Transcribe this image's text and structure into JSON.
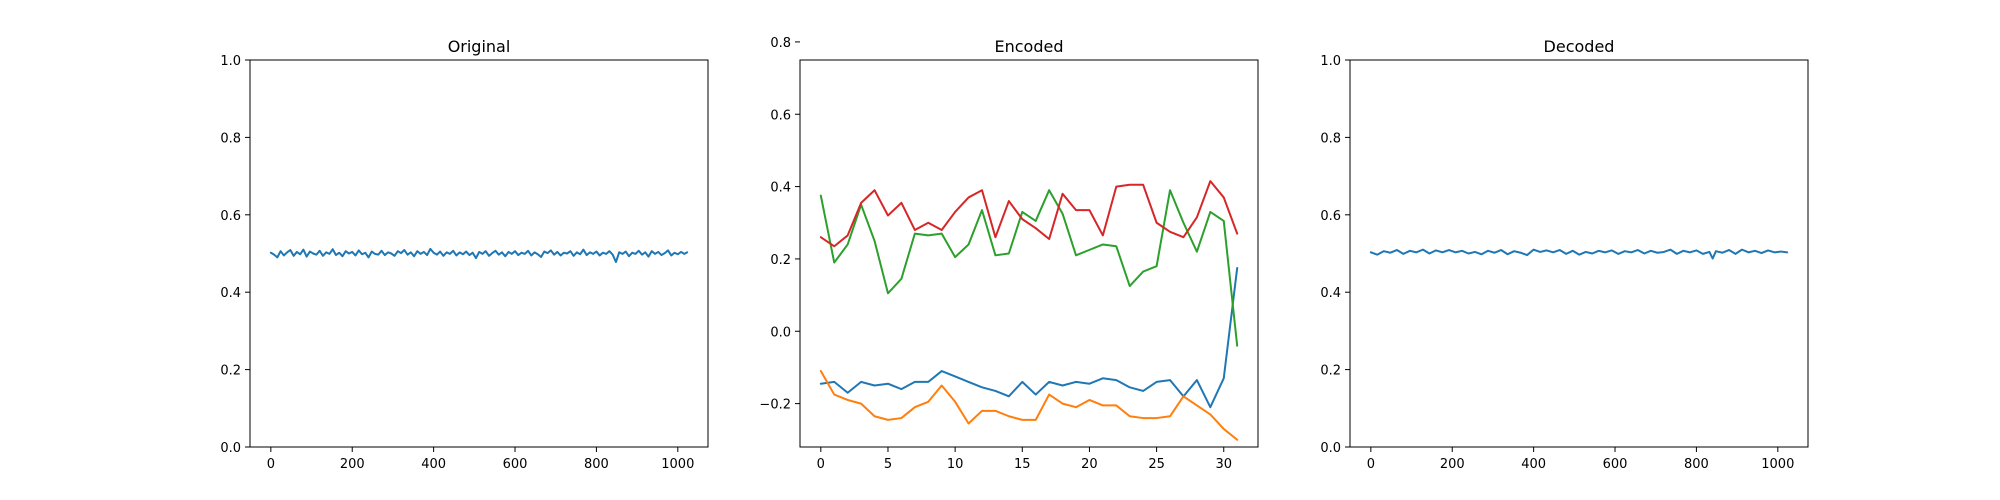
{
  "chart_data": [
    {
      "type": "line",
      "title": "Original",
      "xlabel": "",
      "ylabel": "",
      "xlim": [
        -51.2,
        1074.2
      ],
      "ylim": [
        0.0,
        1.0
      ],
      "xticks": [
        0,
        200,
        400,
        600,
        800,
        1000
      ],
      "yticks": [
        0.0,
        0.2,
        0.4,
        0.6,
        0.8,
        1.0
      ],
      "xtick_labels": [
        "0",
        "200",
        "400",
        "600",
        "800",
        "1000"
      ],
      "ytick_labels": [
        "0.0",
        "0.2",
        "0.4",
        "0.6",
        "0.8",
        "1.0"
      ],
      "grid": false,
      "series": [
        {
          "color": "#1f77b4",
          "x": [
            0,
            8,
            16,
            24,
            32,
            40,
            48,
            56,
            64,
            72,
            80,
            88,
            96,
            104,
            112,
            120,
            128,
            136,
            144,
            152,
            160,
            168,
            176,
            184,
            192,
            200,
            208,
            216,
            224,
            232,
            240,
            248,
            256,
            264,
            272,
            280,
            288,
            296,
            304,
            312,
            320,
            328,
            336,
            344,
            352,
            360,
            368,
            376,
            384,
            392,
            400,
            408,
            416,
            424,
            432,
            440,
            448,
            456,
            464,
            472,
            480,
            488,
            496,
            504,
            512,
            520,
            528,
            536,
            544,
            552,
            560,
            568,
            576,
            584,
            592,
            600,
            608,
            616,
            624,
            632,
            640,
            648,
            656,
            664,
            672,
            680,
            688,
            696,
            704,
            712,
            720,
            728,
            736,
            744,
            752,
            760,
            768,
            776,
            784,
            792,
            800,
            808,
            816,
            824,
            832,
            840,
            848,
            856,
            864,
            872,
            880,
            888,
            896,
            904,
            912,
            920,
            928,
            936,
            944,
            952,
            960,
            968,
            976,
            984,
            992,
            1000,
            1008,
            1016,
            1023
          ],
          "y": [
            0.502,
            0.497,
            0.49,
            0.506,
            0.495,
            0.503,
            0.509,
            0.494,
            0.504,
            0.498,
            0.51,
            0.492,
            0.505,
            0.5,
            0.497,
            0.507,
            0.494,
            0.503,
            0.499,
            0.511,
            0.496,
            0.502,
            0.493,
            0.506,
            0.5,
            0.504,
            0.495,
            0.508,
            0.498,
            0.502,
            0.49,
            0.505,
            0.499,
            0.497,
            0.507,
            0.496,
            0.503,
            0.5,
            0.494,
            0.506,
            0.501,
            0.509,
            0.497,
            0.503,
            0.493,
            0.506,
            0.499,
            0.504,
            0.496,
            0.512,
            0.502,
            0.497,
            0.505,
            0.494,
            0.503,
            0.499,
            0.507,
            0.495,
            0.503,
            0.498,
            0.505,
            0.496,
            0.502,
            0.488,
            0.504,
            0.499,
            0.506,
            0.494,
            0.501,
            0.507,
            0.497,
            0.503,
            0.493,
            0.504,
            0.499,
            0.506,
            0.496,
            0.502,
            0.499,
            0.507,
            0.495,
            0.503,
            0.498,
            0.491,
            0.505,
            0.501,
            0.508,
            0.497,
            0.504,
            0.495,
            0.502,
            0.5,
            0.506,
            0.494,
            0.503,
            0.498,
            0.51,
            0.496,
            0.503,
            0.499,
            0.505,
            0.495,
            0.502,
            0.499,
            0.506,
            0.497,
            0.478,
            0.503,
            0.499,
            0.505,
            0.493,
            0.502,
            0.499,
            0.507,
            0.497,
            0.503,
            0.492,
            0.506,
            0.499,
            0.504,
            0.496,
            0.501,
            0.508,
            0.495,
            0.502,
            0.498,
            0.504,
            0.499,
            0.503
          ]
        }
      ]
    },
    {
      "type": "line",
      "title": "Encoded",
      "xlabel": "",
      "ylabel": "",
      "xlim": [
        -1.55,
        32.55
      ],
      "ylim": [
        -0.32,
        0.75
      ],
      "xticks": [
        0,
        5,
        10,
        15,
        20,
        25,
        30
      ],
      "yticks": [
        -0.2,
        0.0,
        0.2,
        0.4,
        0.6,
        0.8
      ],
      "xtick_labels": [
        "0",
        "5",
        "10",
        "15",
        "20",
        "25",
        "30"
      ],
      "ytick_labels": [
        "−0.2",
        "0.0",
        "0.2",
        "0.4",
        "0.6",
        "0.8"
      ],
      "grid": false,
      "series": [
        {
          "color": "#1f77b4",
          "x": [
            0,
            1,
            2,
            3,
            4,
            5,
            6,
            7,
            8,
            9,
            10,
            11,
            12,
            13,
            14,
            15,
            16,
            17,
            18,
            19,
            20,
            21,
            22,
            23,
            24,
            25,
            26,
            27,
            28,
            29,
            30,
            31
          ],
          "y": [
            -0.145,
            -0.14,
            -0.17,
            -0.14,
            -0.15,
            -0.145,
            -0.16,
            -0.14,
            -0.14,
            -0.11,
            -0.125,
            -0.14,
            -0.155,
            -0.165,
            -0.18,
            -0.14,
            -0.175,
            -0.14,
            -0.15,
            -0.14,
            -0.145,
            -0.13,
            -0.135,
            -0.155,
            -0.165,
            -0.14,
            -0.135,
            -0.18,
            -0.135,
            -0.21,
            -0.13,
            0.175
          ]
        },
        {
          "color": "#ff7f0e",
          "x": [
            0,
            1,
            2,
            3,
            4,
            5,
            6,
            7,
            8,
            9,
            10,
            11,
            12,
            13,
            14,
            15,
            16,
            17,
            18,
            19,
            20,
            21,
            22,
            23,
            24,
            25,
            26,
            27,
            28,
            29,
            30,
            31
          ],
          "y": [
            -0.11,
            -0.175,
            -0.19,
            -0.2,
            -0.235,
            -0.245,
            -0.24,
            -0.21,
            -0.195,
            -0.15,
            -0.195,
            -0.255,
            -0.22,
            -0.22,
            -0.235,
            -0.245,
            -0.245,
            -0.175,
            -0.2,
            -0.21,
            -0.19,
            -0.205,
            -0.205,
            -0.235,
            -0.24,
            -0.24,
            -0.235,
            -0.18,
            -0.205,
            -0.23,
            -0.27,
            -0.3
          ]
        },
        {
          "color": "#2ca02c",
          "x": [
            0,
            1,
            2,
            3,
            4,
            5,
            6,
            7,
            8,
            9,
            10,
            11,
            12,
            13,
            14,
            15,
            16,
            17,
            18,
            19,
            20,
            21,
            22,
            23,
            24,
            25,
            26,
            27,
            28,
            29,
            30,
            31
          ],
          "y": [
            0.375,
            0.19,
            0.24,
            0.35,
            0.25,
            0.105,
            0.145,
            0.27,
            0.265,
            0.27,
            0.205,
            0.24,
            0.335,
            0.21,
            0.215,
            0.33,
            0.305,
            0.39,
            0.325,
            0.21,
            0.225,
            0.24,
            0.235,
            0.125,
            0.165,
            0.18,
            0.39,
            0.3,
            0.22,
            0.33,
            0.305,
            -0.04
          ]
        },
        {
          "color": "#d62728",
          "x": [
            0,
            1,
            2,
            3,
            4,
            5,
            6,
            7,
            8,
            9,
            10,
            11,
            12,
            13,
            14,
            15,
            16,
            17,
            18,
            19,
            20,
            21,
            22,
            23,
            24,
            25,
            26,
            27,
            28,
            29,
            30,
            31
          ],
          "y": [
            0.26,
            0.235,
            0.265,
            0.355,
            0.39,
            0.32,
            0.355,
            0.28,
            0.3,
            0.28,
            0.33,
            0.37,
            0.39,
            0.26,
            0.36,
            0.31,
            0.285,
            0.255,
            0.38,
            0.335,
            0.335,
            0.265,
            0.4,
            0.405,
            0.405,
            0.3,
            0.275,
            0.26,
            0.315,
            0.415,
            0.37,
            0.27
          ]
        }
      ]
    },
    {
      "type": "line",
      "title": "Decoded",
      "xlabel": "",
      "ylabel": "",
      "xlim": [
        -51.2,
        1074.2
      ],
      "ylim": [
        0.0,
        1.0
      ],
      "xticks": [
        0,
        200,
        400,
        600,
        800,
        1000
      ],
      "yticks": [
        0.0,
        0.2,
        0.4,
        0.6,
        0.8,
        1.0
      ],
      "xtick_labels": [
        "0",
        "200",
        "400",
        "600",
        "800",
        "1000"
      ],
      "ytick_labels": [
        "0.0",
        "0.2",
        "0.4",
        "0.6",
        "0.8",
        "1.0"
      ],
      "grid": false,
      "series": [
        {
          "color": "#1f77b4",
          "x": [
            0,
            16,
            32,
            48,
            64,
            80,
            96,
            112,
            128,
            144,
            160,
            176,
            192,
            208,
            224,
            240,
            256,
            272,
            288,
            304,
            320,
            336,
            352,
            368,
            384,
            400,
            416,
            432,
            448,
            464,
            480,
            496,
            512,
            528,
            544,
            560,
            576,
            592,
            608,
            624,
            640,
            656,
            672,
            688,
            704,
            720,
            736,
            752,
            768,
            784,
            800,
            816,
            832,
            840,
            848,
            864,
            880,
            896,
            912,
            928,
            944,
            960,
            976,
            992,
            1008,
            1023
          ],
          "y": [
            0.503,
            0.497,
            0.506,
            0.502,
            0.509,
            0.499,
            0.507,
            0.503,
            0.51,
            0.5,
            0.508,
            0.503,
            0.509,
            0.503,
            0.507,
            0.5,
            0.504,
            0.498,
            0.507,
            0.502,
            0.509,
            0.498,
            0.506,
            0.502,
            0.496,
            0.51,
            0.504,
            0.508,
            0.503,
            0.509,
            0.499,
            0.507,
            0.497,
            0.504,
            0.5,
            0.507,
            0.503,
            0.508,
            0.499,
            0.506,
            0.503,
            0.509,
            0.5,
            0.507,
            0.502,
            0.504,
            0.51,
            0.499,
            0.507,
            0.503,
            0.508,
            0.499,
            0.504,
            0.487,
            0.506,
            0.502,
            0.509,
            0.499,
            0.51,
            0.503,
            0.507,
            0.501,
            0.508,
            0.503,
            0.505,
            0.503
          ]
        }
      ]
    }
  ]
}
